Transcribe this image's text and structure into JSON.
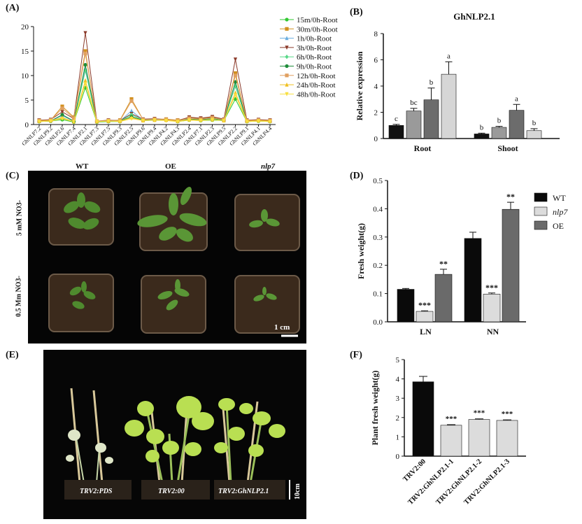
{
  "panels": {
    "a": {
      "label": "(A)"
    },
    "b": {
      "label": "(B)"
    },
    "c": {
      "label": "(C)"
    },
    "d": {
      "label": "(D)"
    },
    "e": {
      "label": "(E)"
    },
    "f": {
      "label": "(F)"
    }
  },
  "photo_c": {
    "col_labels": [
      "WT",
      "OE",
      "nlp7"
    ],
    "row_labels": [
      "5 mM NO3-",
      "0.5 Mm NO3-"
    ],
    "scale": "1 cm"
  },
  "photo_e": {
    "pot_labels": [
      "TRV2:PDS",
      "TRV2:00",
      "TRV2:GhNLP2.1"
    ],
    "scale": "10cm"
  },
  "chart_data": [
    {
      "id": "A",
      "type": "line",
      "categories": [
        "GhNLP7.2",
        "GhNLP9.2",
        "GhNLP2.6",
        "GhNLP7.4",
        "GhNLP2.1",
        "GhNLP7.3",
        "GhNLP7.5",
        "GhNLP9.3",
        "GhNLP2.5",
        "GhNLP9.6",
        "GhNLP9.4",
        "GhNLP4.2",
        "GhNLP4.3",
        "GhNLP2.4",
        "GhNLP7.1",
        "GhNLP2.3",
        "GhNLP9.5",
        "GhNLP2.2",
        "GhNLP9.1",
        "GhNLP4.1",
        "GhNLP4.4"
      ],
      "ylim": [
        0,
        20
      ],
      "yticks": [
        0,
        5,
        10,
        15,
        20
      ],
      "legend_position": "top-right",
      "series": [
        {
          "name": "15m/0h-Root",
          "color": "#32c832",
          "marker": "circle",
          "values": [
            0.6,
            0.7,
            1.0,
            0.5,
            7.5,
            0.5,
            0.6,
            0.6,
            1.5,
            0.8,
            0.9,
            0.9,
            0.6,
            0.9,
            0.8,
            0.9,
            0.8,
            5.2,
            0.6,
            0.7,
            0.6
          ]
        },
        {
          "name": "30m/0h-Root",
          "color": "#d2901e",
          "marker": "square",
          "values": [
            0.8,
            0.9,
            3.7,
            1.5,
            15.0,
            0.6,
            0.8,
            0.9,
            5.2,
            1.0,
            1.1,
            1.1,
            0.9,
            1.4,
            1.2,
            1.5,
            1.0,
            10.5,
            0.8,
            0.9,
            0.8
          ]
        },
        {
          "name": "1h/0h-Root",
          "color": "#6aaee0",
          "marker": "triangle",
          "values": [
            0.7,
            0.8,
            1.8,
            0.7,
            11.5,
            0.6,
            0.7,
            0.7,
            2.8,
            0.9,
            1.0,
            1.0,
            0.7,
            1.1,
            1.0,
            1.2,
            0.9,
            8.0,
            0.7,
            0.8,
            0.7
          ]
        },
        {
          "name": "3h/0h-Root",
          "color": "#8b3a2a",
          "marker": "tri-down",
          "values": [
            0.9,
            1.0,
            2.6,
            1.2,
            18.7,
            0.7,
            0.9,
            0.8,
            2.2,
            1.1,
            1.2,
            1.0,
            0.8,
            1.5,
            1.3,
            1.6,
            1.1,
            13.3,
            0.9,
            1.0,
            0.9
          ]
        },
        {
          "name": "6h/0h-Root",
          "color": "#58d888",
          "marker": "diamond",
          "values": [
            0.7,
            0.8,
            1.3,
            0.6,
            11.0,
            0.6,
            0.7,
            0.7,
            2.0,
            0.9,
            1.0,
            0.9,
            0.7,
            1.0,
            0.9,
            1.1,
            0.9,
            7.8,
            0.7,
            0.8,
            0.7
          ]
        },
        {
          "name": "9h/0h-Root",
          "color": "#1e8c3a",
          "marker": "circle",
          "values": [
            0.6,
            0.7,
            2.0,
            0.7,
            12.2,
            0.6,
            0.7,
            0.7,
            1.6,
            0.9,
            1.0,
            0.9,
            0.7,
            1.1,
            1.0,
            1.2,
            0.9,
            8.7,
            0.7,
            0.8,
            0.7
          ]
        },
        {
          "name": "12h/0h-Root",
          "color": "#e0a060",
          "marker": "square",
          "values": [
            0.8,
            0.9,
            3.3,
            1.3,
            14.5,
            0.7,
            0.8,
            0.8,
            4.8,
            1.0,
            1.1,
            1.0,
            0.8,
            1.3,
            1.1,
            1.4,
            1.0,
            10.0,
            0.8,
            0.9,
            0.8
          ]
        },
        {
          "name": "24h/0h-Root",
          "color": "#f0c020",
          "marker": "triangle",
          "values": [
            0.7,
            0.8,
            1.4,
            0.6,
            9.0,
            0.6,
            0.7,
            0.7,
            1.4,
            0.8,
            0.9,
            0.9,
            0.7,
            1.0,
            0.9,
            1.0,
            0.8,
            6.5,
            0.7,
            0.8,
            0.7
          ]
        },
        {
          "name": "48h/0h-Root",
          "color": "#f8e040",
          "marker": "tri-down",
          "values": [
            0.6,
            0.7,
            1.2,
            0.6,
            8.3,
            0.6,
            0.7,
            0.6,
            1.2,
            0.8,
            0.9,
            0.8,
            0.6,
            0.9,
            0.8,
            1.0,
            0.8,
            6.0,
            0.6,
            0.7,
            0.6
          ]
        }
      ]
    },
    {
      "id": "B",
      "type": "bar",
      "title": "GhNLP2.1",
      "ylabel": "Relative expression",
      "ylim": [
        0,
        8
      ],
      "yticks": [
        0,
        2,
        4,
        6,
        8
      ],
      "categories": [
        "Root",
        "Shoot"
      ],
      "bar_colors": [
        "#111111",
        "#9a9a9a",
        "#6c6c6c",
        "#d6d6d6"
      ],
      "groups": [
        {
          "values": [
            1.0,
            2.1,
            2.95,
            4.9
          ],
          "errors": [
            0.08,
            0.2,
            0.9,
            0.95
          ],
          "letters": [
            "c",
            "bc",
            "b",
            "a"
          ]
        },
        {
          "values": [
            0.35,
            0.85,
            2.15,
            0.6
          ],
          "errors": [
            0.06,
            0.08,
            0.45,
            0.15
          ],
          "letters": [
            "b",
            "b",
            "a",
            "b"
          ]
        }
      ]
    },
    {
      "id": "D",
      "type": "bar",
      "ylabel": "Fresh weight(g)",
      "ylim": [
        0,
        0.5
      ],
      "yticks": [
        0.0,
        0.1,
        0.2,
        0.3,
        0.4,
        0.5
      ],
      "categories": [
        "LN",
        "NN"
      ],
      "series": [
        {
          "name": "WT",
          "color": "#0a0a0a",
          "values": [
            0.115,
            0.295
          ],
          "errors": [
            0.003,
            0.022
          ],
          "sig": [
            "",
            ""
          ]
        },
        {
          "name": "nlp7",
          "color": "#dcdcdc",
          "values": [
            0.037,
            0.098
          ],
          "errors": [
            0.002,
            0.004
          ],
          "sig": [
            "***",
            "***"
          ]
        },
        {
          "name": "OE",
          "color": "#6a6a6a",
          "values": [
            0.168,
            0.398
          ],
          "errors": [
            0.018,
            0.025
          ],
          "sig": [
            "**",
            "**"
          ]
        }
      ],
      "legend_position": "top-right"
    },
    {
      "id": "F",
      "type": "bar",
      "ylabel": "Plant fresh weight(g)",
      "ylim": [
        0,
        5
      ],
      "yticks": [
        0,
        1,
        2,
        3,
        4,
        5
      ],
      "categories": [
        "TRV2:00",
        "TRV2:GhNLP2.1-1",
        "TRV2:GhNLP2.1-2",
        "TRV2:GhNLP2.1-3"
      ],
      "values": [
        3.85,
        1.6,
        1.9,
        1.85
      ],
      "errors": [
        0.28,
        0.03,
        0.03,
        0.03
      ],
      "sig": [
        "",
        "***",
        "***",
        "***"
      ],
      "bar_colors": [
        "#0a0a0a",
        "#dcdcdc",
        "#dcdcdc",
        "#dcdcdc"
      ]
    }
  ]
}
